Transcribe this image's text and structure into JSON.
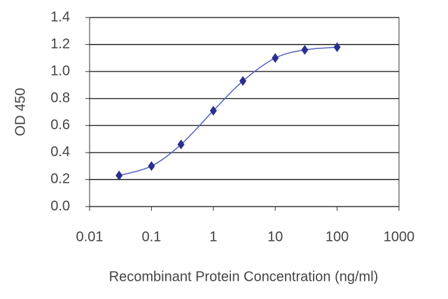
{
  "chart_data": {
    "type": "line",
    "x_label": "Recombinant Protein Concentration (ng/ml)",
    "y_label": "OD 450",
    "x": [
      0.03,
      0.1,
      0.3,
      1,
      3,
      10,
      30,
      100
    ],
    "series": [
      {
        "color": "#2b2f8f",
        "values": [
          0.23,
          0.3,
          0.46,
          0.71,
          0.93,
          1.1,
          1.16,
          1.18
        ]
      }
    ],
    "x_log": true,
    "xlim": [
      0.01,
      1000
    ],
    "xticks": [
      0.01,
      0.1,
      1,
      10,
      100,
      1000
    ],
    "ylim": [
      0,
      1.4
    ],
    "yticks": [
      {
        "value": 0,
        "label": "0.0"
      },
      0.2,
      0.4,
      0.6,
      0.8,
      {
        "value": 1,
        "label": "1.0"
      },
      1.2,
      1.4
    ],
    "grid": true,
    "line_color": "#5560c0"
  }
}
